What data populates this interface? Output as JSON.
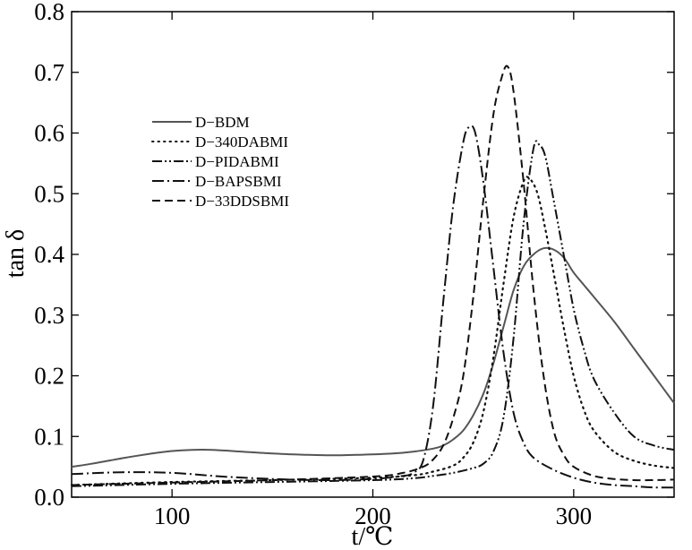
{
  "chart_data": {
    "type": "line",
    "title": "",
    "xlabel": "t/℃",
    "ylabel": "tan δ",
    "xlim": [
      50,
      350
    ],
    "ylim": [
      0.0,
      0.8
    ],
    "xticks": [
      100,
      200,
      300
    ],
    "xtick_labels": [
      "100",
      "200",
      "300"
    ],
    "yticks": [
      0.0,
      0.1,
      0.2,
      0.3,
      0.4,
      0.5,
      0.6,
      0.7,
      0.8
    ],
    "ytick_labels": [
      "0.0",
      "0.1",
      "0.2",
      "0.3",
      "0.4",
      "0.5",
      "0.6",
      "0.7",
      "0.8"
    ],
    "grid": false,
    "legend_position": "upper-left",
    "series": [
      {
        "name": "D−BDM",
        "dash": "solid",
        "x": [
          50,
          60,
          75,
          90,
          100,
          110,
          120,
          135,
          150,
          165,
          180,
          195,
          210,
          220,
          230,
          235,
          240,
          245,
          250,
          255,
          260,
          265,
          270,
          275,
          280,
          285,
          290,
          295,
          300,
          305,
          310,
          320,
          330,
          340,
          350
        ],
        "y": [
          0.05,
          0.055,
          0.064,
          0.072,
          0.076,
          0.078,
          0.078,
          0.075,
          0.072,
          0.07,
          0.069,
          0.07,
          0.072,
          0.075,
          0.08,
          0.085,
          0.095,
          0.11,
          0.135,
          0.17,
          0.22,
          0.28,
          0.34,
          0.38,
          0.4,
          0.41,
          0.408,
          0.395,
          0.37,
          0.35,
          0.33,
          0.29,
          0.245,
          0.2,
          0.155
        ]
      },
      {
        "name": "D−340DABMI",
        "dash": "dotted",
        "x": [
          50,
          100,
          150,
          200,
          220,
          230,
          240,
          245,
          250,
          255,
          260,
          265,
          270,
          275,
          278,
          282,
          286,
          290,
          295,
          300,
          305,
          310,
          320,
          330,
          340,
          350
        ],
        "y": [
          0.02,
          0.025,
          0.028,
          0.032,
          0.036,
          0.042,
          0.052,
          0.065,
          0.09,
          0.14,
          0.23,
          0.35,
          0.46,
          0.52,
          0.525,
          0.5,
          0.44,
          0.37,
          0.28,
          0.2,
          0.145,
          0.11,
          0.075,
          0.06,
          0.052,
          0.048
        ]
      },
      {
        "name": "D−PIDABMI",
        "dash": "dash-dot-dot",
        "x": [
          50,
          100,
          150,
          200,
          220,
          230,
          240,
          250,
          255,
          260,
          265,
          270,
          275,
          280,
          283,
          286,
          290,
          295,
          300,
          305,
          310,
          320,
          330,
          340,
          350
        ],
        "y": [
          0.018,
          0.022,
          0.025,
          0.028,
          0.031,
          0.035,
          0.04,
          0.048,
          0.055,
          0.075,
          0.13,
          0.26,
          0.45,
          0.575,
          0.58,
          0.56,
          0.49,
          0.4,
          0.31,
          0.245,
          0.195,
          0.14,
          0.1,
          0.085,
          0.078
        ]
      },
      {
        "name": "D−BAPSBMI",
        "dash": "dash-dot",
        "x": [
          50,
          75,
          100,
          125,
          150,
          175,
          200,
          215,
          220,
          225,
          230,
          235,
          240,
          245,
          248,
          251,
          255,
          260,
          265,
          270,
          275,
          280,
          290,
          300,
          310,
          320,
          330,
          340,
          350
        ],
        "y": [
          0.038,
          0.041,
          0.04,
          0.034,
          0.03,
          0.028,
          0.03,
          0.035,
          0.04,
          0.06,
          0.15,
          0.32,
          0.48,
          0.585,
          0.61,
          0.6,
          0.52,
          0.38,
          0.24,
          0.14,
          0.09,
          0.065,
          0.045,
          0.032,
          0.024,
          0.02,
          0.018,
          0.016,
          0.016
        ]
      },
      {
        "name": "D−33DDSBMI",
        "dash": "dashed",
        "x": [
          50,
          100,
          150,
          200,
          215,
          225,
          230,
          235,
          240,
          245,
          250,
          255,
          260,
          264,
          267,
          270,
          275,
          280,
          285,
          290,
          295,
          300,
          310,
          320,
          330,
          340,
          350
        ],
        "y": [
          0.02,
          0.024,
          0.028,
          0.034,
          0.04,
          0.05,
          0.062,
          0.085,
          0.13,
          0.2,
          0.33,
          0.49,
          0.63,
          0.69,
          0.71,
          0.67,
          0.52,
          0.34,
          0.2,
          0.11,
          0.07,
          0.05,
          0.035,
          0.03,
          0.028,
          0.028,
          0.029
        ]
      }
    ]
  }
}
